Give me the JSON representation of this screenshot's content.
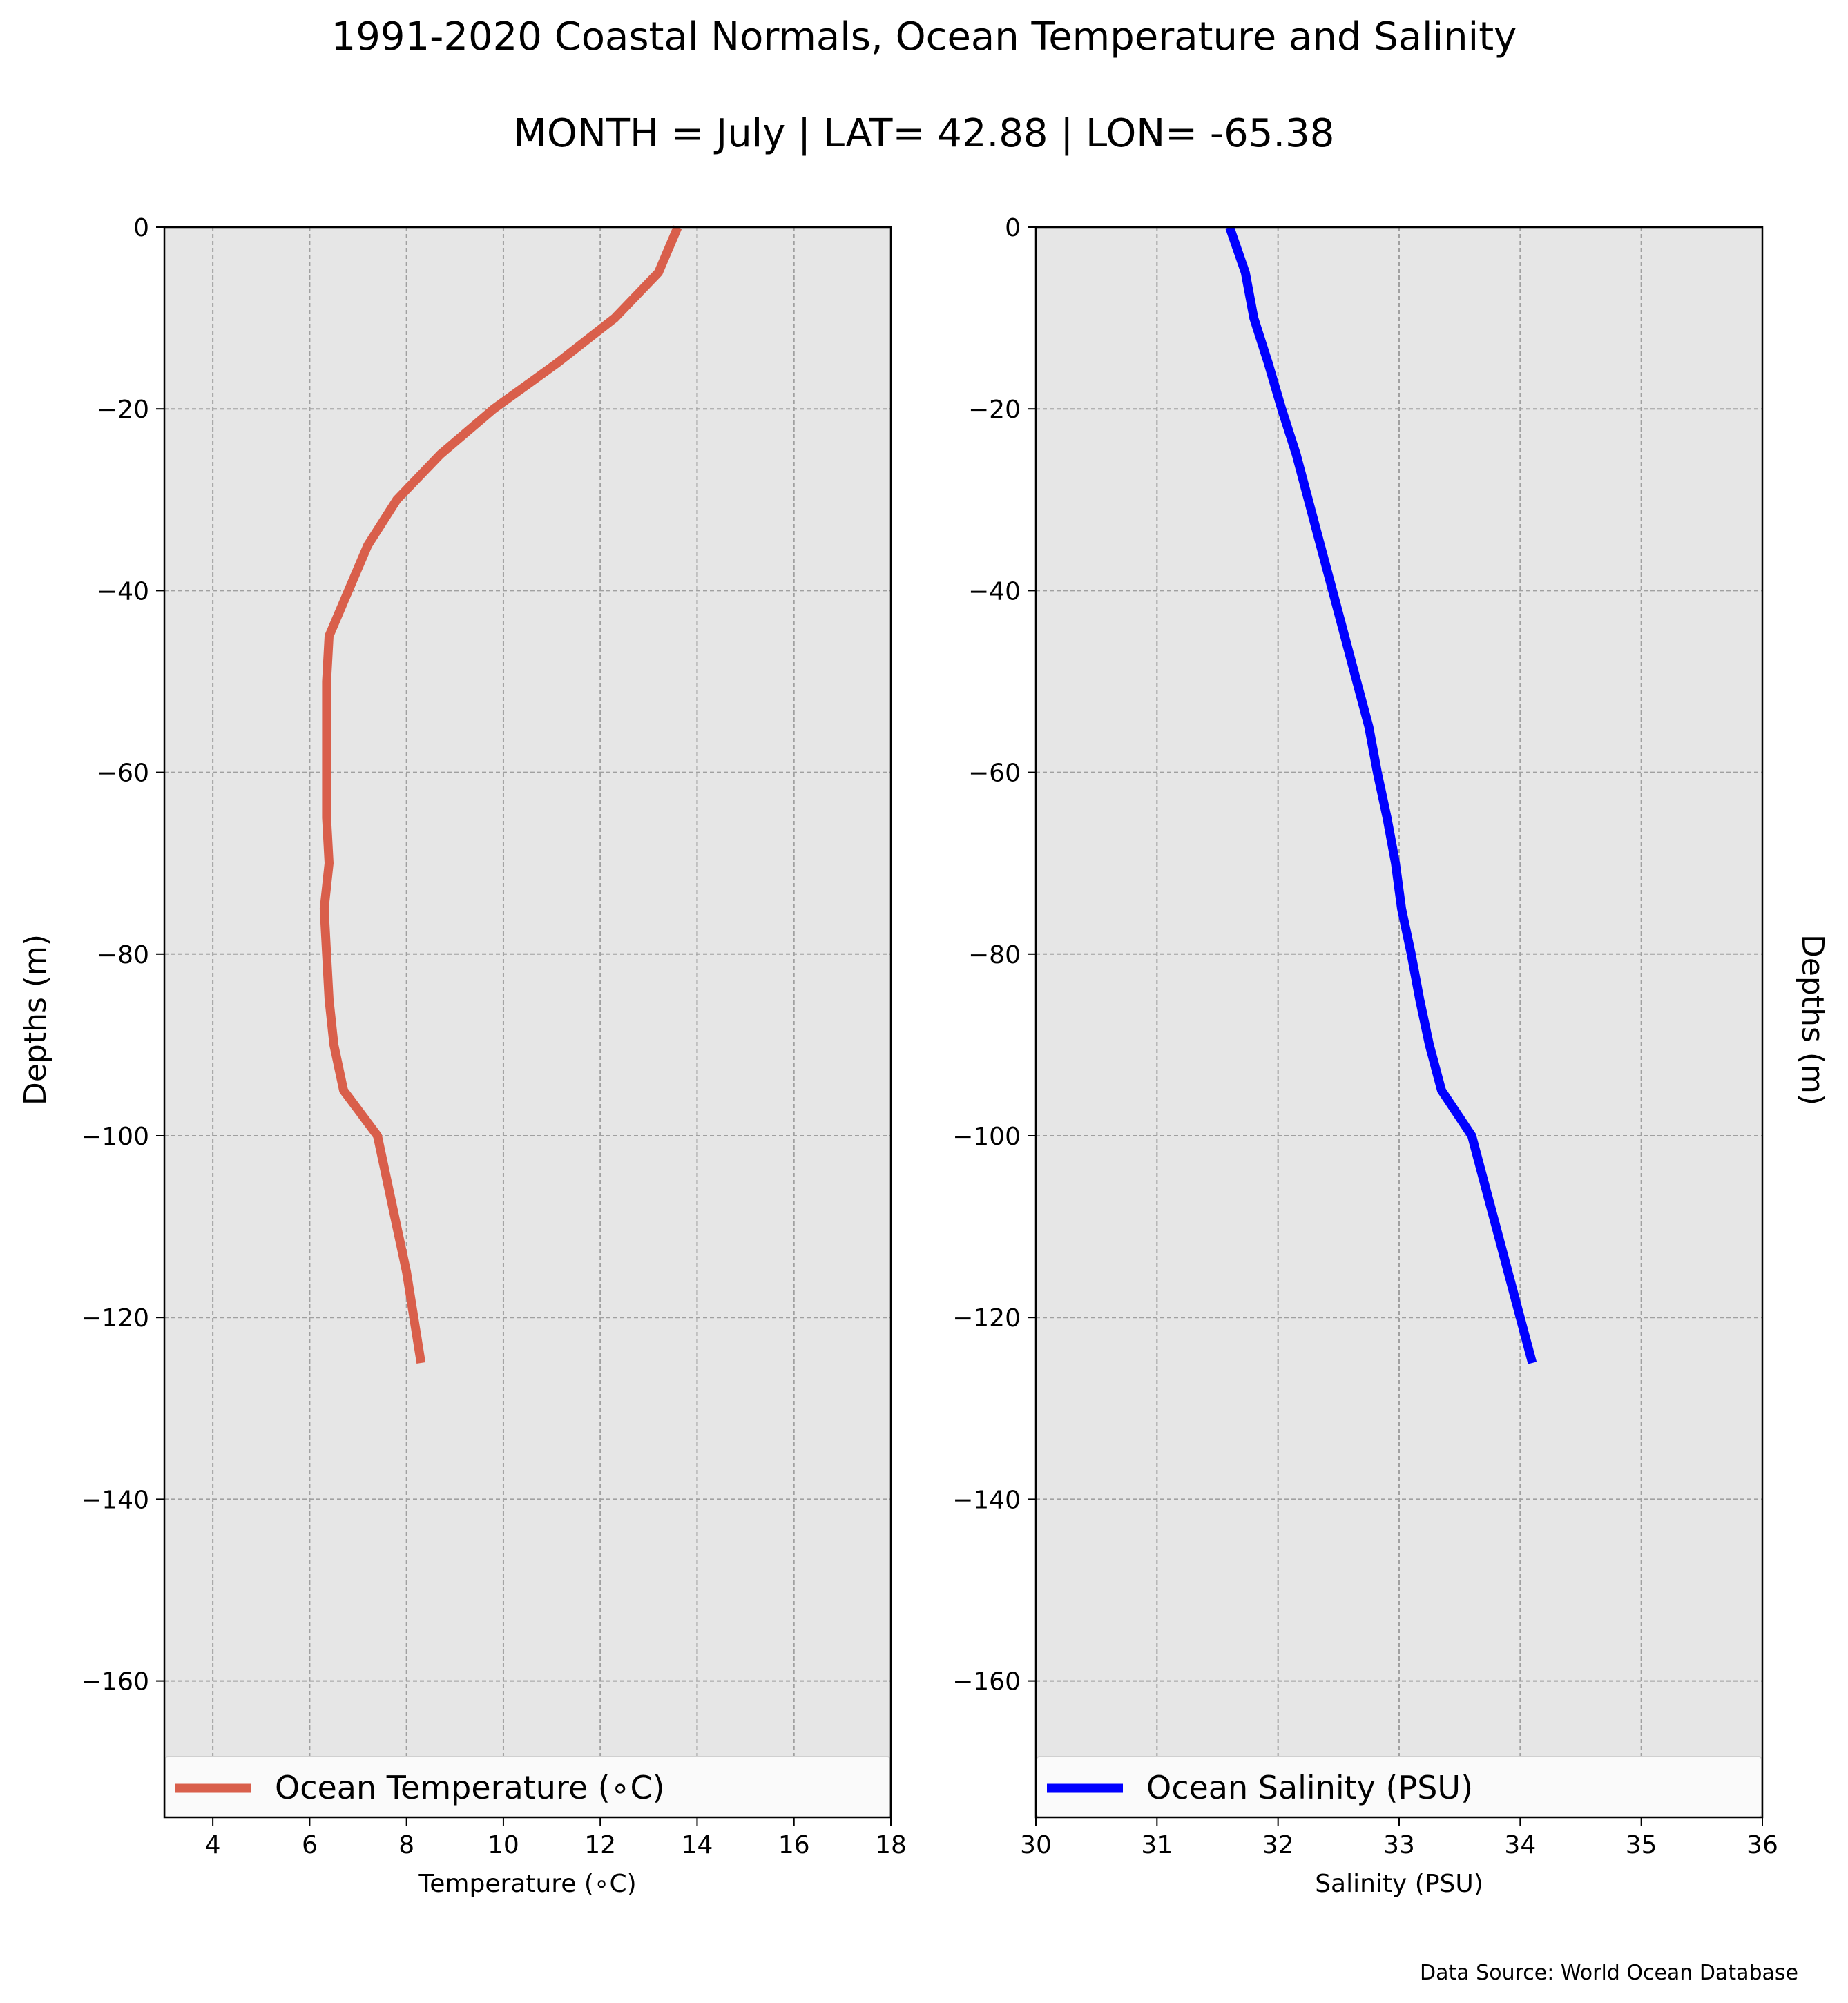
{
  "figure": {
    "title": "1991-2020 Coastal Normals, Ocean Temperature and Salinity",
    "subtitle": "MONTH = July | LAT= 42.88 | LON= -65.38",
    "source_note": "Data Source: World Ocean Database",
    "panel_background": "#e6e6e6",
    "grid_color": "#a0a0a0"
  },
  "chart_data": [
    {
      "type": "line",
      "title": "",
      "xlabel": "Temperature (∘C)",
      "ylabel": "Depths (m)",
      "xlim": [
        3,
        18
      ],
      "ylim": [
        -175,
        0
      ],
      "xticks": [
        4,
        6,
        8,
        10,
        12,
        14,
        16,
        18
      ],
      "xtick_labels": [
        "4",
        "6",
        "8",
        "10",
        "12",
        "14",
        "16",
        "18"
      ],
      "yticks": [
        0,
        -20,
        -40,
        -60,
        -80,
        -100,
        -120,
        -140,
        -160
      ],
      "ytick_labels": [
        "0",
        "−20",
        "−40",
        "−60",
        "−80",
        "−100",
        "−120",
        "−140",
        "−160"
      ],
      "grid": true,
      "legend_position": "bottom",
      "series": [
        {
          "name": "Ocean Temperature (∘C)",
          "color": "#d95f4b",
          "points": [
            {
              "x": 13.6,
              "y": 0
            },
            {
              "x": 13.2,
              "y": -5
            },
            {
              "x": 12.3,
              "y": -10
            },
            {
              "x": 11.1,
              "y": -15
            },
            {
              "x": 9.8,
              "y": -20
            },
            {
              "x": 8.7,
              "y": -25
            },
            {
              "x": 7.8,
              "y": -30
            },
            {
              "x": 7.2,
              "y": -35
            },
            {
              "x": 6.8,
              "y": -40
            },
            {
              "x": 6.4,
              "y": -45
            },
            {
              "x": 6.35,
              "y": -50
            },
            {
              "x": 6.35,
              "y": -55
            },
            {
              "x": 6.35,
              "y": -60
            },
            {
              "x": 6.35,
              "y": -65
            },
            {
              "x": 6.4,
              "y": -70
            },
            {
              "x": 6.3,
              "y": -75
            },
            {
              "x": 6.35,
              "y": -80
            },
            {
              "x": 6.4,
              "y": -85
            },
            {
              "x": 6.5,
              "y": -90
            },
            {
              "x": 6.7,
              "y": -95
            },
            {
              "x": 7.4,
              "y": -100
            },
            {
              "x": 7.6,
              "y": -105
            },
            {
              "x": 7.8,
              "y": -110
            },
            {
              "x": 8.0,
              "y": -115
            },
            {
              "x": 8.15,
              "y": -120
            },
            {
              "x": 8.3,
              "y": -125
            }
          ]
        }
      ]
    },
    {
      "type": "line",
      "title": "",
      "xlabel": "Salinity (PSU)",
      "ylabel": "Depths (m)",
      "xlim": [
        30,
        36
      ],
      "ylim": [
        -175,
        0
      ],
      "xticks": [
        30,
        31,
        32,
        33,
        34,
        35,
        36
      ],
      "xtick_labels": [
        "30",
        "31",
        "32",
        "33",
        "34",
        "35",
        "36"
      ],
      "yticks": [
        0,
        -20,
        -40,
        -60,
        -80,
        -100,
        -120,
        -140,
        -160
      ],
      "ytick_labels": [
        "0",
        "−20",
        "−40",
        "−60",
        "−80",
        "−100",
        "−120",
        "−140",
        "−160"
      ],
      "grid": true,
      "legend_position": "bottom",
      "series": [
        {
          "name": "Ocean Salinity (PSU)",
          "color": "#0000ff",
          "points": [
            {
              "x": 31.6,
              "y": 0
            },
            {
              "x": 31.73,
              "y": -5
            },
            {
              "x": 31.8,
              "y": -10
            },
            {
              "x": 31.92,
              "y": -15
            },
            {
              "x": 32.03,
              "y": -20
            },
            {
              "x": 32.15,
              "y": -25
            },
            {
              "x": 32.25,
              "y": -30
            },
            {
              "x": 32.35,
              "y": -35
            },
            {
              "x": 32.45,
              "y": -40
            },
            {
              "x": 32.55,
              "y": -45
            },
            {
              "x": 32.65,
              "y": -50
            },
            {
              "x": 32.75,
              "y": -55
            },
            {
              "x": 32.82,
              "y": -60
            },
            {
              "x": 32.9,
              "y": -65
            },
            {
              "x": 32.97,
              "y": -70
            },
            {
              "x": 33.02,
              "y": -75
            },
            {
              "x": 33.1,
              "y": -80
            },
            {
              "x": 33.17,
              "y": -85
            },
            {
              "x": 33.25,
              "y": -90
            },
            {
              "x": 33.35,
              "y": -95
            },
            {
              "x": 33.6,
              "y": -100
            },
            {
              "x": 33.7,
              "y": -105
            },
            {
              "x": 33.8,
              "y": -110
            },
            {
              "x": 33.9,
              "y": -115
            },
            {
              "x": 34.0,
              "y": -120
            },
            {
              "x": 34.1,
              "y": -125
            }
          ]
        }
      ]
    }
  ]
}
